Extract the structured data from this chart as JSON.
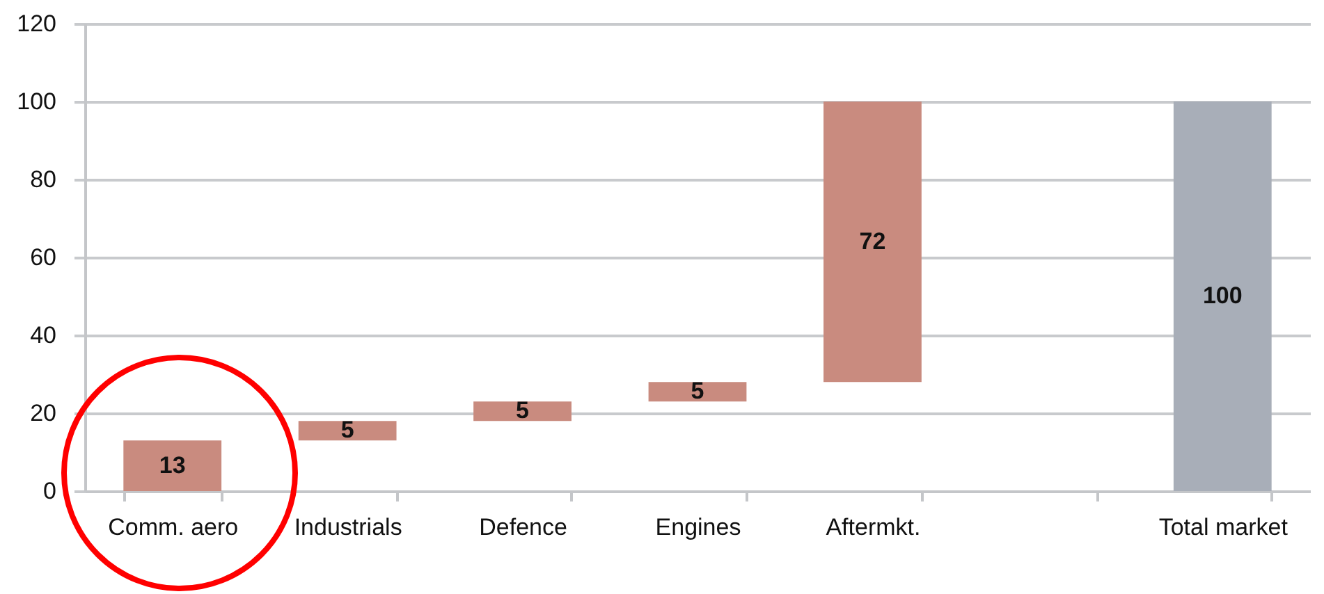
{
  "chart_data": {
    "type": "bar",
    "categories": [
      "Comm. aero",
      "Industrials",
      "Defence",
      "Engines",
      "Aftermkt.",
      null,
      "Total market"
    ],
    "values": [
      13,
      5,
      5,
      5,
      72,
      null,
      100
    ],
    "base": [
      0,
      13,
      18,
      23,
      28,
      null,
      0
    ],
    "colors": [
      "#c98b7f",
      "#c98b7f",
      "#c98b7f",
      "#c98b7f",
      "#c98b7f",
      null,
      "#a8aeb8"
    ],
    "ylim": [
      0,
      120
    ],
    "yticks": [
      0,
      20,
      40,
      60,
      80,
      100,
      120
    ],
    "grid": "y",
    "data_labels": true
  }
}
